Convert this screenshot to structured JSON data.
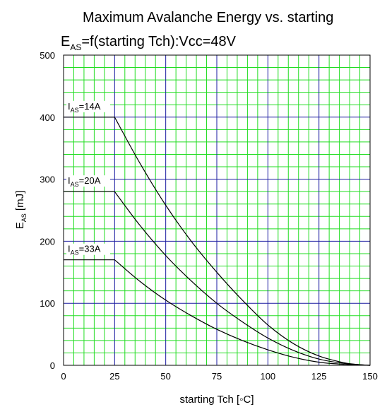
{
  "chart_data": {
    "type": "line",
    "title": {
      "line1": "Maximum Avalanche Energy vs. starting",
      "line2_main": "E",
      "line2_sub": "AS",
      "line2_rest": "=f(starting Tch):Vcc=48V"
    },
    "xlabel": "starting Tch [◦C]",
    "ylabel": {
      "main": "E",
      "sub": "AS",
      "rest": " [mJ]"
    },
    "xlim": [
      0,
      150
    ],
    "ylim": [
      0,
      500
    ],
    "x_ticks": [
      "0",
      "25",
      "50",
      "75",
      "100",
      "125",
      "150"
    ],
    "y_ticks": [
      "0",
      "100",
      "200",
      "300",
      "400",
      "500"
    ],
    "grid": true,
    "colors": {
      "minor_grid": "#22dd22",
      "major_grid": "#1a1aa0",
      "curve": "#000000",
      "frame": "#000000"
    },
    "series": [
      {
        "label": {
          "main": "I",
          "sub": "AS",
          "rest": "=14A"
        },
        "points": [
          [
            0,
            400
          ],
          [
            25,
            400
          ],
          [
            37.5,
            325
          ],
          [
            50,
            258
          ],
          [
            62.5,
            200
          ],
          [
            75,
            150
          ],
          [
            87.5,
            105
          ],
          [
            100,
            65
          ],
          [
            112.5,
            35
          ],
          [
            125,
            15
          ],
          [
            137.5,
            4
          ],
          [
            145,
            1
          ],
          [
            150,
            0
          ]
        ]
      },
      {
        "label": {
          "main": "I",
          "sub": "AS",
          "rest": "=20A"
        },
        "points": [
          [
            0,
            280
          ],
          [
            25,
            280
          ],
          [
            37.5,
            225
          ],
          [
            50,
            177
          ],
          [
            62.5,
            136
          ],
          [
            75,
            100
          ],
          [
            87.5,
            70
          ],
          [
            100,
            44
          ],
          [
            112.5,
            24
          ],
          [
            125,
            10
          ],
          [
            137.5,
            3
          ],
          [
            145,
            1
          ],
          [
            150,
            0
          ]
        ]
      },
      {
        "label": {
          "main": "I",
          "sub": "AS",
          "rest": "=33A"
        },
        "points": [
          [
            0,
            170
          ],
          [
            25,
            170
          ],
          [
            37.5,
            135
          ],
          [
            50,
            105
          ],
          [
            62.5,
            80
          ],
          [
            75,
            58
          ],
          [
            87.5,
            40
          ],
          [
            100,
            25
          ],
          [
            112.5,
            13
          ],
          [
            125,
            5
          ],
          [
            137.5,
            1.5
          ],
          [
            145,
            0.5
          ],
          [
            150,
            0
          ]
        ]
      }
    ]
  }
}
